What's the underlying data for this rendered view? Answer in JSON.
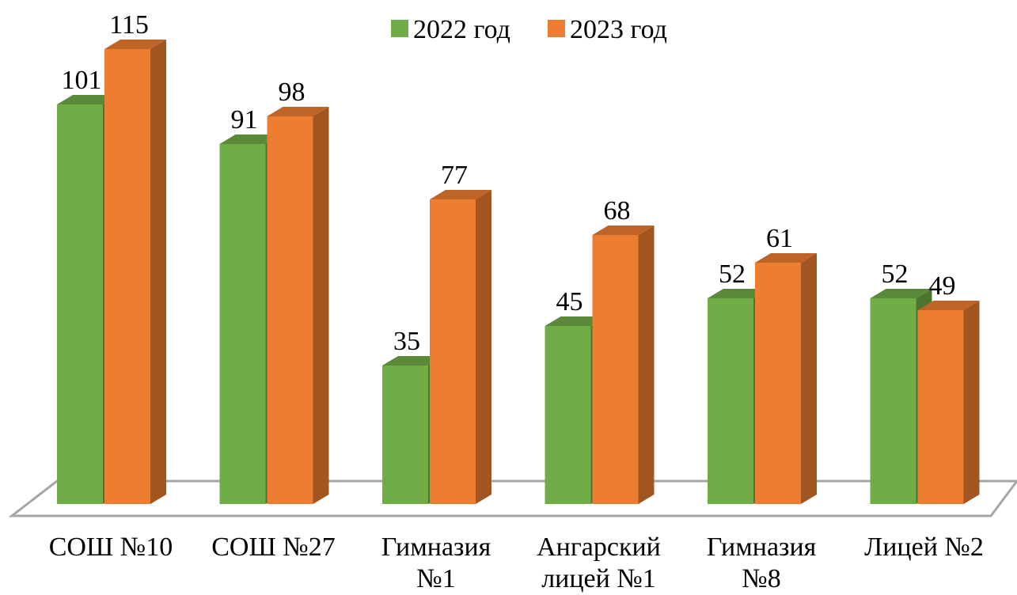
{
  "chart_data": {
    "type": "bar3d",
    "categories": [
      "СОШ №10",
      "СОШ №27",
      "Гимназия\n№1",
      "Ангарский\nлицей №1",
      "Гимназия\n№8",
      "Лицей №2"
    ],
    "series": [
      {
        "name": "2022 год",
        "color": "#70ad47",
        "values": [
          101,
          91,
          35,
          45,
          52,
          52
        ]
      },
      {
        "name": "2023 год",
        "color": "#ed7d31",
        "values": [
          115,
          98,
          77,
          68,
          61,
          49
        ]
      }
    ],
    "ylim": [
      0,
      120
    ]
  }
}
